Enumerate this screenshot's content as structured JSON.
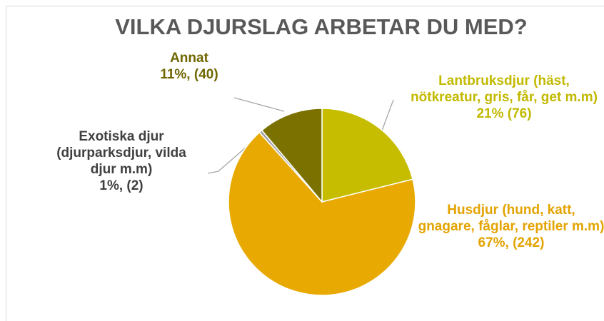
{
  "chart_data": {
    "type": "pie",
    "title": "VILKA DJURSLAG ARBETAR DU MED?",
    "categories": [
      "Lantbruksdjur (häst, nötkreatur, gris, får, get m.m)",
      "Husdjur (hund, katt, gnagare, fåglar, reptiler m.m)",
      "Exotiska djur (djurparksdjur, vilda djur m.m)",
      "Annat"
    ],
    "values": [
      76,
      242,
      2,
      40
    ],
    "value_labels": [
      "21% (76)",
      "67%, (242)",
      "1%, (2)",
      "11%, (40)"
    ],
    "colors": [
      "#c6bd00",
      "#e8a902",
      "#a5a5a5",
      "#7a7100"
    ],
    "label_colors": [
      "#c2b900",
      "#e3a300",
      "#404040",
      "#6f6600"
    ]
  }
}
